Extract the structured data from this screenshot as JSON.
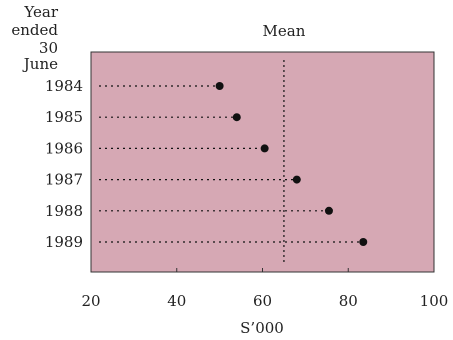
{
  "chart_data": {
    "type": "dot",
    "ylabel_lines": [
      "Year",
      "ended",
      "30 June"
    ],
    "xlabel": "S’000",
    "categories": [
      "1984",
      "1985",
      "1986",
      "1987",
      "1988",
      "1989"
    ],
    "values": [
      50,
      54,
      60.5,
      68,
      75.5,
      83.5
    ],
    "xlim": [
      20,
      100
    ],
    "xticks": [
      "20",
      "40",
      "60",
      "80",
      "100"
    ],
    "reference_line": {
      "label": "Mean",
      "x": 65
    },
    "colors": {
      "background": "#d6a8b4",
      "dot": "#111111",
      "line": "#111111"
    }
  }
}
